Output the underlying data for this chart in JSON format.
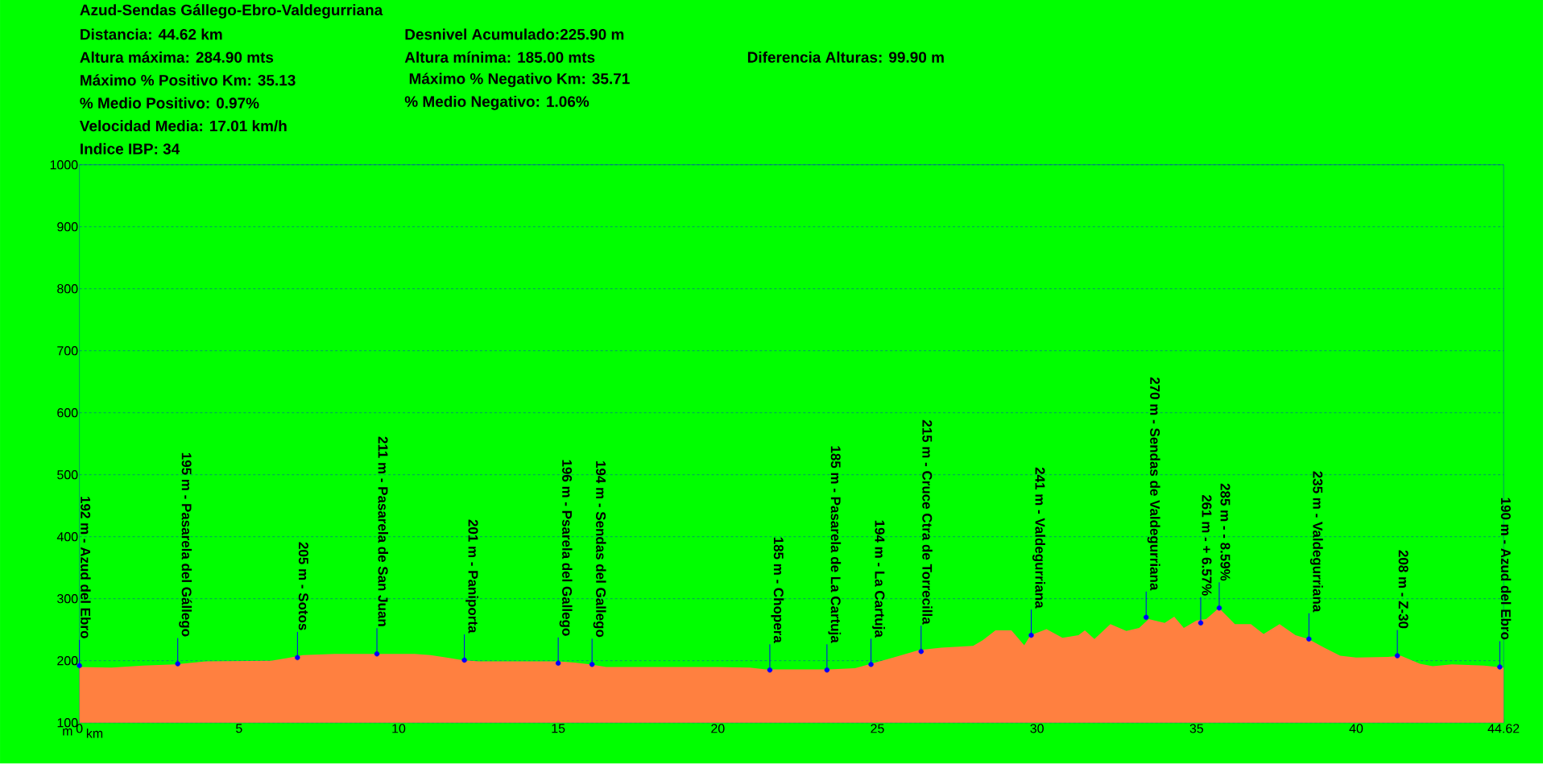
{
  "chart_data": {
    "type": "area",
    "title": "Azud-Sendas Gállego-Ebro-Valdegurriana",
    "xlabel": "km",
    "ylabel": "m",
    "xlim": [
      0,
      44.62
    ],
    "ylim": [
      100,
      1000
    ],
    "xticks": [
      0,
      5,
      10,
      15,
      20,
      25,
      30,
      35,
      40,
      44.62
    ],
    "yticks": [
      100,
      200,
      300,
      400,
      500,
      600,
      700,
      800,
      900,
      1000
    ],
    "grid": "y",
    "series": [
      {
        "color": "#ff8040",
        "x": [
          0,
          1,
          2,
          3,
          4,
          6,
          6.5,
          7,
          7.5,
          8,
          10.5,
          11,
          11.5,
          12,
          12.5,
          15,
          15.5,
          16,
          16.5,
          20,
          21,
          21.5,
          23.5,
          24.3,
          24.8,
          25.5,
          26.3,
          27,
          28,
          28.3,
          28.7,
          29.2,
          29.6,
          29.8,
          30.3,
          30.8,
          31.3,
          31.5,
          31.8,
          32.3,
          32.8,
          33.2,
          33.5,
          34,
          34.3,
          34.6,
          35,
          35.3,
          35.7,
          36.2,
          36.7,
          37.1,
          37.6,
          38.1,
          38.5,
          39,
          39.5,
          40,
          41,
          41.4,
          42,
          42.4,
          43,
          44,
          44.62
        ],
        "values": [
          190,
          189,
          192,
          194,
          199,
          200,
          204,
          209,
          210,
          211,
          211,
          209,
          205,
          201,
          199,
          199,
          197,
          194,
          190,
          190,
          189,
          186,
          186,
          188,
          195,
          205,
          217,
          221,
          224,
          233,
          249,
          249,
          225,
          241,
          251,
          237,
          241,
          249,
          235,
          259,
          248,
          253,
          267,
          261,
          271,
          253,
          265,
          267,
          285,
          259,
          259,
          243,
          259,
          241,
          235,
          221,
          208,
          205,
          206,
          208,
          195,
          191,
          194,
          192,
          189
        ]
      },
      {
        "type": "scatter",
        "color": "#0000ff",
        "marker": "circle",
        "x": [
          0,
          3.08,
          6.83,
          9.32,
          12.06,
          15.0,
          16.06,
          21.63,
          23.42,
          24.8,
          26.37,
          29.82,
          33.42,
          35.13,
          35.71,
          38.52,
          41.29,
          44.5
        ],
        "values": [
          192,
          195,
          205,
          211,
          201,
          196,
          194,
          185,
          185,
          194,
          215,
          241,
          270,
          261,
          285,
          235,
          208,
          190
        ]
      }
    ],
    "annotations": [
      "Distancia: 44.62 km",
      "Desnivel Acumulado:225.90 m",
      "Altura máxima: 284.90 mts",
      "Altura mínima: 185.00 mts",
      "Diferencia Alturas:  99.90 m",
      "Máximo % Positivo Km: 35.13",
      " Máximo % Negativo Km: 35.71",
      "% Medio Positivo: 0.97%",
      "% Medio Negativo: 1.06%",
      "Velocidad Media: 17.01 km/h",
      "Indice IBP: 34",
      {
        "text": "192 m - Azud del Ebro",
        "x": 0,
        "y": 192
      },
      {
        "text": "195 m - Pasarela del Gállego",
        "x": 3.08,
        "y": 195
      },
      {
        "text": "205 m - Sotos",
        "x": 6.83,
        "y": 205
      },
      {
        "text": "211 m - Pasarela de San Juan",
        "x": 9.32,
        "y": 211
      },
      {
        "text": "201 m - Paniporta",
        "x": 12.06,
        "y": 201
      },
      {
        "text": "196 m - Psarela del Gallego",
        "x": 15.0,
        "y": 196
      },
      {
        "text": "194 m - Sendas del Gallego",
        "x": 16.06,
        "y": 194
      },
      {
        "text": "185 m - Chopera",
        "x": 21.63,
        "y": 185
      },
      {
        "text": "185 m - Pasarela de La Cartuja",
        "x": 23.42,
        "y": 185
      },
      {
        "text": "194 m - La Cartuja",
        "x": 24.8,
        "y": 194
      },
      {
        "text": "215 m - Cruce Ctra de Torrecilla",
        "x": 26.37,
        "y": 215
      },
      {
        "text": "241 m - Valdegurriana",
        "x": 29.82,
        "y": 241
      },
      {
        "text": "270 m - Sendas de Valdegurriana",
        "x": 33.42,
        "y": 270
      },
      {
        "text": "261 m - + 6.57%",
        "x": 35.13,
        "y": 261
      },
      {
        "text": "285 m - - 8.59%",
        "x": 35.71,
        "y": 285
      },
      {
        "text": "235 m - Valdegurriana",
        "x": 38.52,
        "y": 235
      },
      {
        "text": "208 m - Z-30",
        "x": 41.29,
        "y": 208
      },
      {
        "text": "190 m - Azud del Ebro",
        "x": 44.5,
        "y": 190
      }
    ]
  }
}
